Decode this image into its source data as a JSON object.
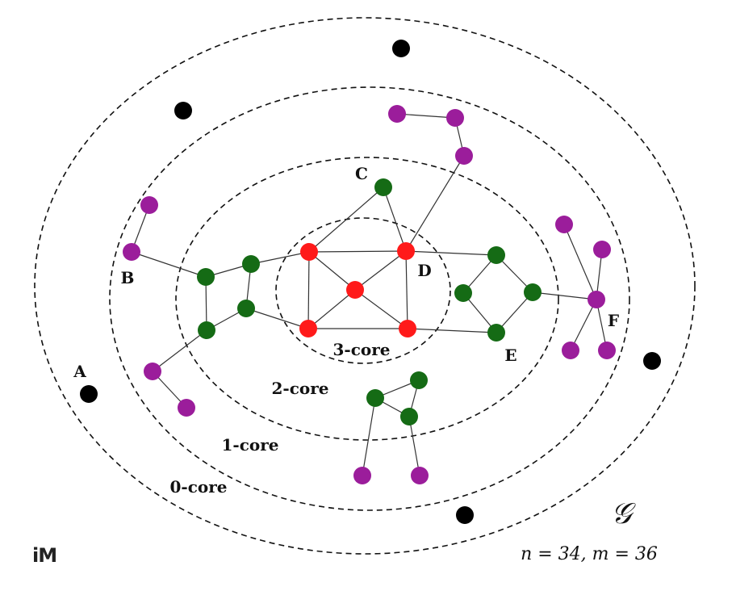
{
  "colors": {
    "core3": "#ff1a1a",
    "core2": "#156b15",
    "core1": "#9b1d9b",
    "core0": "#000000"
  },
  "core_labels": {
    "core3": "3-core",
    "core2": "2-core",
    "core1": "1-core",
    "core0": "0-core"
  },
  "node_labels": {
    "A": "A",
    "B": "B",
    "C": "C",
    "D": "D",
    "E": "E",
    "F": "F"
  },
  "graph": {
    "symbol": "𝒢",
    "stats": "n = 34,  m = 36"
  },
  "logo": "iM"
}
